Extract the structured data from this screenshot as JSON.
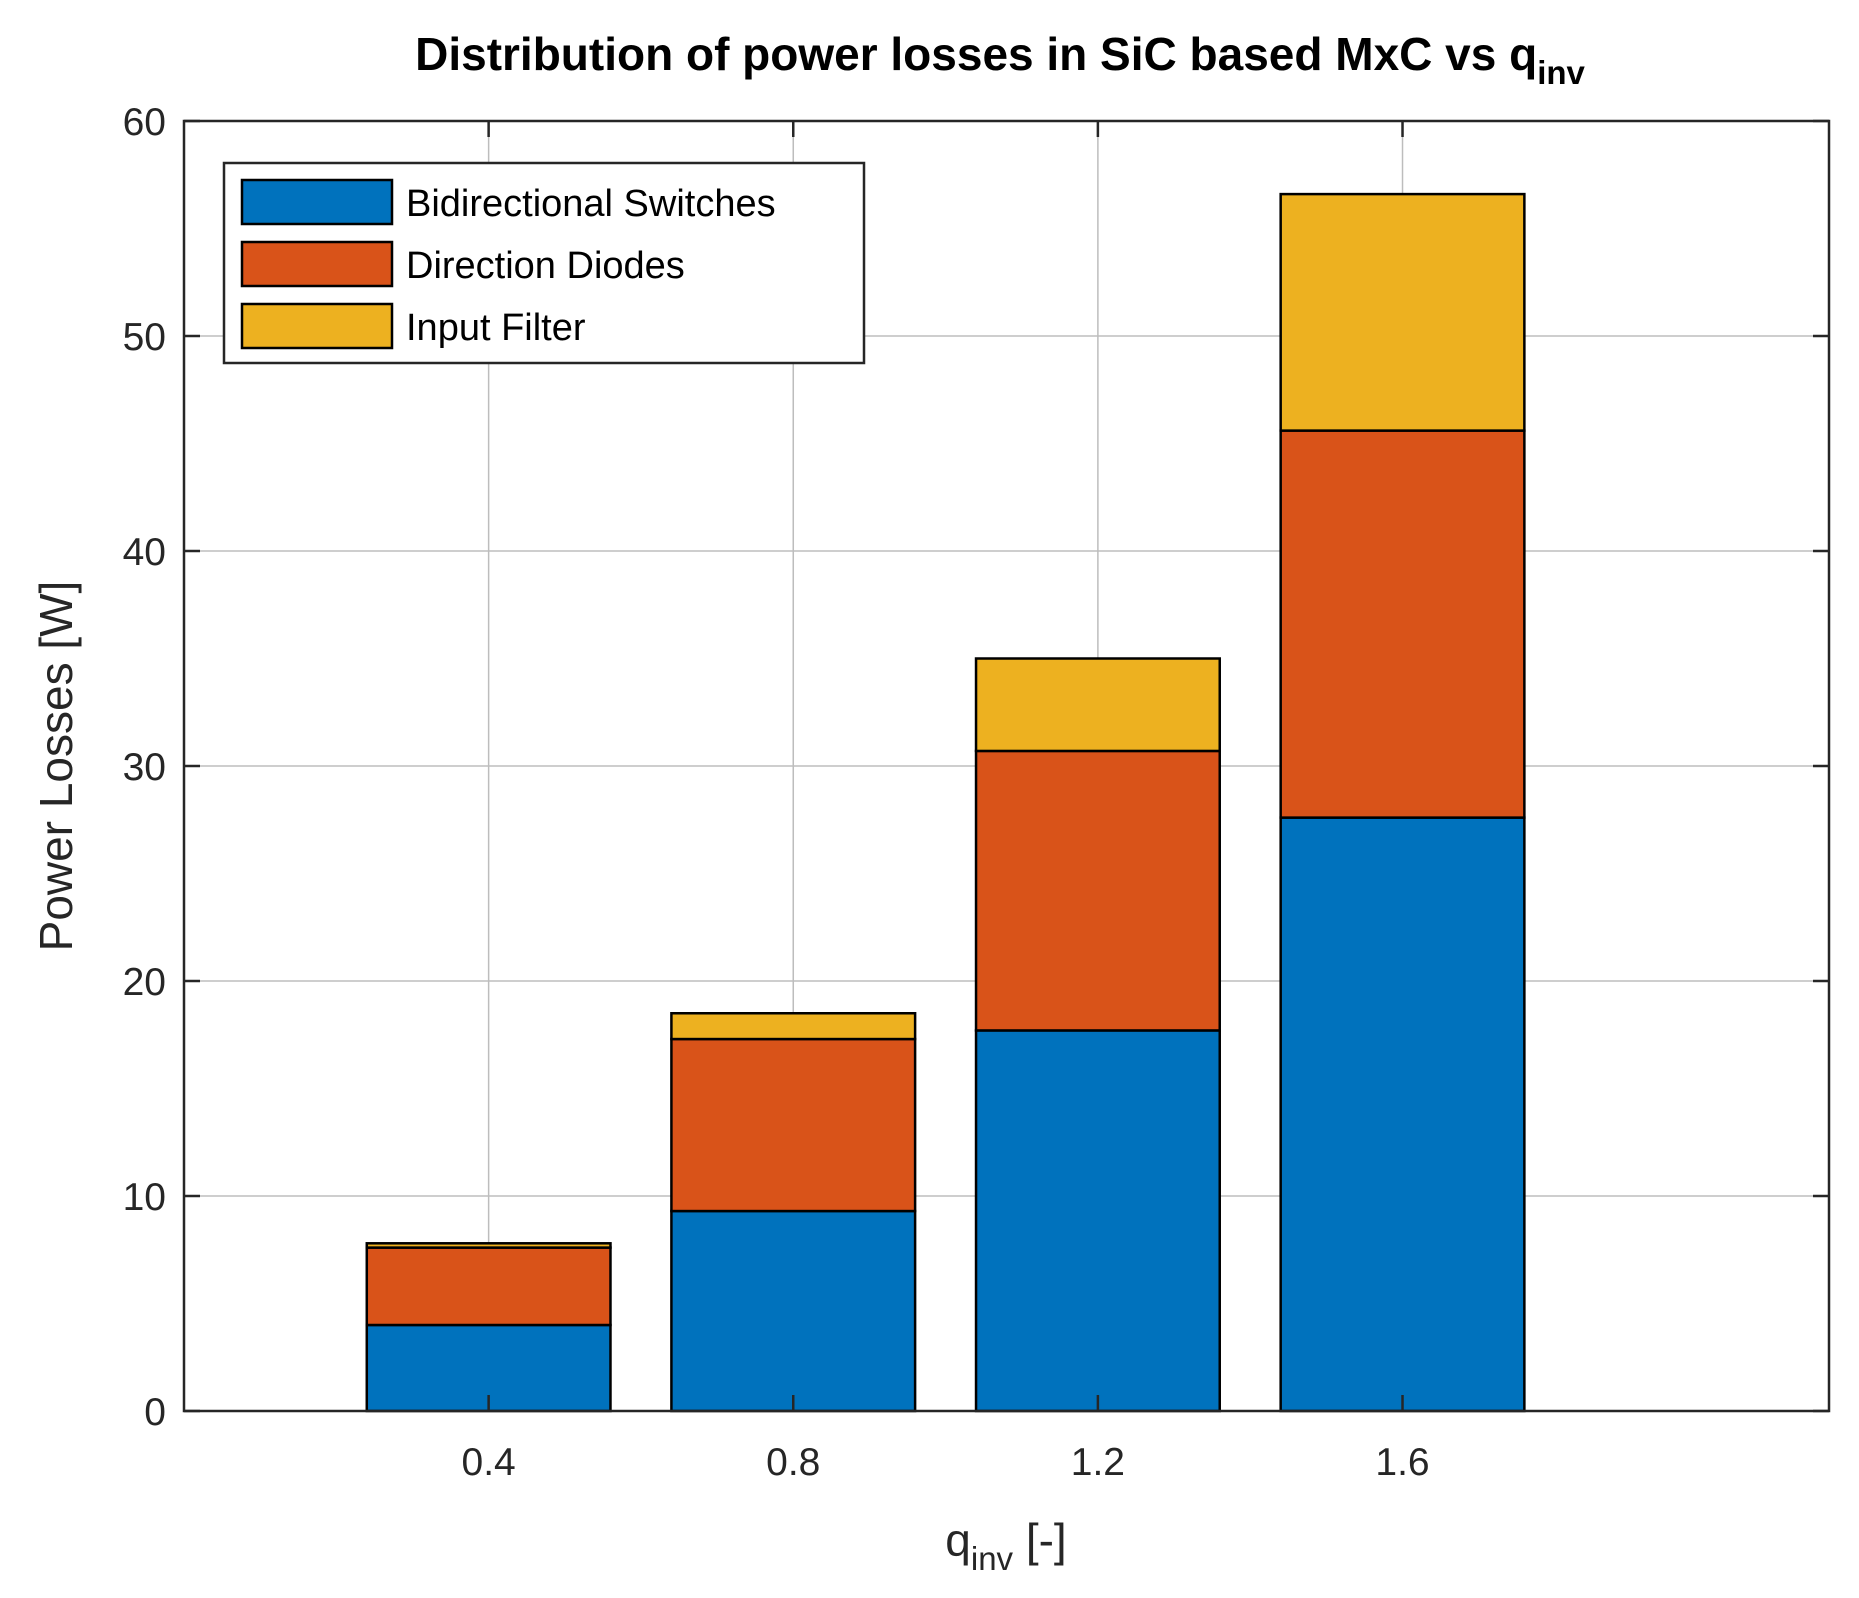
{
  "chart_data": {
    "type": "bar",
    "stacked": true,
    "title": "Distribution of power losses in SiC based MxC vs q",
    "title_subscript": "inv",
    "xlabel": "q",
    "xlabel_subscript": "inv",
    "xlabel_suffix": " [-]",
    "ylabel": "Power Losses [W]",
    "categories": [
      "0.4",
      "0.8",
      "1.2",
      "1.6"
    ],
    "xlim": [
      0,
      2.16
    ],
    "ylim": [
      0,
      60
    ],
    "yticks": [
      "0",
      "10",
      "20",
      "30",
      "40",
      "50",
      "60"
    ],
    "grid": true,
    "legend_position": "top-left",
    "series": [
      {
        "name": "Bidirectional Switches",
        "color": "#0072BD",
        "values": [
          4.0,
          9.3,
          17.7,
          27.6
        ]
      },
      {
        "name": "Direction Diodes",
        "color": "#D95319",
        "values": [
          3.6,
          8.0,
          13.0,
          18.0
        ]
      },
      {
        "name": "Input Filter",
        "color": "#EDB120",
        "values": [
          0.2,
          1.2,
          4.3,
          11.0
        ]
      }
    ]
  }
}
